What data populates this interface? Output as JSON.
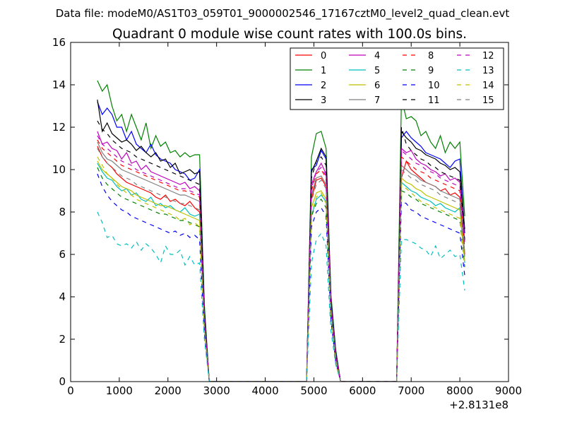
{
  "figure": {
    "suptitle": "Data file: modeM0/AS1T03_059T01_9000002546_17167cztM0_level2_quad_clean.evt"
  },
  "chart_data": {
    "type": "line",
    "title": "Quadrant 0 module wise count rates with 100.0s bins.",
    "xlabel": "",
    "ylabel": "",
    "x_offset_label": "+2.8131e8",
    "xlim": [
      0,
      9000
    ],
    "ylim": [
      0,
      16
    ],
    "xticks": [
      0,
      1000,
      2000,
      3000,
      4000,
      5000,
      6000,
      7000,
      8000,
      9000
    ],
    "yticks": [
      0,
      2,
      4,
      6,
      8,
      10,
      12,
      14,
      16
    ],
    "x": [
      550,
      650,
      750,
      850,
      950,
      1050,
      1150,
      1250,
      1350,
      1450,
      1550,
      1650,
      1750,
      1850,
      1950,
      2050,
      2150,
      2250,
      2350,
      2450,
      2550,
      2650,
      2750,
      2850,
      2950,
      3500,
      4000,
      4500,
      4850,
      4950,
      5050,
      5150,
      5250,
      5350,
      5450,
      5550,
      5650,
      6000,
      6500,
      6700,
      6800,
      6900,
      7000,
      7100,
      7200,
      7300,
      7400,
      7500,
      7600,
      7700,
      7800,
      7900,
      8000,
      8100
    ],
    "legend": {
      "location": "top-right",
      "columns": 4
    },
    "series": [
      {
        "name": "0",
        "color": "#ff0000",
        "dash": "solid",
        "values": [
          11.1,
          10.6,
          10.3,
          10.1,
          9.8,
          9.6,
          9.4,
          9.3,
          9.2,
          9.1,
          9.0,
          8.9,
          8.7,
          8.6,
          8.8,
          8.5,
          8.6,
          8.4,
          8.3,
          8.5,
          8.2,
          8.0,
          2.8,
          0,
          0,
          0,
          0,
          0,
          0,
          8.6,
          9.5,
          9.6,
          9.2,
          3.5,
          1.2,
          0,
          0,
          0,
          0,
          0,
          9.6,
          10.4,
          10.0,
          9.8,
          9.6,
          9.4,
          9.3,
          9.2,
          9.0,
          9.1,
          8.8,
          8.9,
          8.7,
          6.0
        ]
      },
      {
        "name": "1",
        "color": "#008000",
        "dash": "solid",
        "values": [
          14.2,
          13.7,
          14.0,
          13.0,
          12.3,
          12.6,
          11.8,
          12.6,
          12.0,
          11.4,
          12.2,
          11.0,
          11.6,
          11.1,
          11.3,
          10.8,
          10.9,
          10.6,
          10.8,
          10.6,
          10.7,
          10.7,
          3.6,
          0,
          0,
          0,
          0,
          0,
          0,
          10.6,
          11.7,
          11.8,
          11.0,
          4.1,
          1.5,
          0,
          0,
          0,
          0,
          0,
          13.4,
          12.4,
          12.5,
          12.3,
          11.6,
          11.8,
          11.3,
          11.0,
          11.6,
          10.8,
          11.3,
          11.0,
          11.3,
          7.8
        ]
      },
      {
        "name": "2",
        "color": "#0000ff",
        "dash": "solid",
        "values": [
          13.2,
          12.6,
          12.9,
          12.6,
          12.0,
          12.0,
          11.4,
          11.8,
          11.2,
          11.0,
          10.8,
          11.2,
          10.7,
          10.5,
          10.4,
          10.3,
          10.0,
          9.9,
          9.8,
          9.5,
          9.6,
          10.0,
          3.3,
          0,
          0,
          0,
          0,
          0,
          0,
          10.0,
          10.2,
          10.9,
          10.5,
          3.9,
          1.4,
          0,
          0,
          0,
          0,
          0,
          11.5,
          11.8,
          11.5,
          11.3,
          11.1,
          10.8,
          10.7,
          10.6,
          10.5,
          10.3,
          10.1,
          10.4,
          10.5,
          7.0
        ]
      },
      {
        "name": "3",
        "color": "#000000",
        "dash": "solid",
        "values": [
          13.3,
          11.8,
          12.2,
          11.7,
          11.5,
          11.3,
          11.4,
          11.2,
          10.9,
          11.1,
          10.8,
          10.6,
          10.8,
          10.4,
          10.5,
          10.1,
          10.3,
          9.8,
          9.9,
          10.0,
          9.8,
          9.9,
          3.3,
          0,
          0,
          0,
          0,
          0,
          0,
          9.9,
          10.4,
          11.0,
          10.6,
          3.8,
          1.3,
          0,
          0,
          0,
          0,
          0,
          11.8,
          11.5,
          11.3,
          11.0,
          10.9,
          10.7,
          10.6,
          10.5,
          10.3,
          10.2,
          10.0,
          10.1,
          9.9,
          7.2
        ]
      },
      {
        "name": "4",
        "color": "#bf00bf",
        "dash": "solid",
        "values": [
          11.8,
          11.2,
          11.3,
          11.0,
          10.9,
          10.5,
          10.8,
          10.3,
          10.4,
          10.0,
          10.2,
          9.9,
          9.8,
          9.7,
          9.6,
          9.5,
          9.4,
          9.3,
          9.4,
          9.1,
          9.2,
          9.0,
          3.0,
          0,
          0,
          0,
          0,
          0,
          0,
          9.3,
          9.9,
          10.3,
          9.8,
          3.6,
          1.2,
          0,
          0,
          0,
          0,
          0,
          11.0,
          10.8,
          10.9,
          10.5,
          10.3,
          10.2,
          10.0,
          9.9,
          9.7,
          9.8,
          9.5,
          9.6,
          9.4,
          6.6
        ]
      },
      {
        "name": "5",
        "color": "#00bfbf",
        "dash": "solid",
        "values": [
          10.3,
          9.9,
          9.6,
          9.5,
          9.2,
          9.0,
          9.1,
          8.8,
          8.9,
          8.6,
          8.5,
          8.7,
          8.3,
          8.4,
          8.2,
          8.3,
          8.1,
          8.0,
          8.2,
          7.9,
          7.8,
          7.9,
          2.6,
          0,
          0,
          0,
          0,
          0,
          0,
          7.8,
          8.6,
          8.8,
          8.5,
          3.2,
          1.0,
          0,
          0,
          0,
          0,
          0,
          9.4,
          9.2,
          9.0,
          8.9,
          8.7,
          8.6,
          8.5,
          8.3,
          8.4,
          8.2,
          8.1,
          8.0,
          8.2,
          5.6
        ]
      },
      {
        "name": "6",
        "color": "#bfbf00",
        "dash": "solid",
        "values": [
          10.4,
          10.0,
          9.8,
          9.6,
          9.4,
          9.2,
          9.1,
          9.0,
          8.8,
          8.7,
          8.6,
          8.5,
          8.4,
          8.3,
          8.3,
          8.2,
          8.1,
          8.0,
          7.9,
          7.8,
          7.7,
          7.6,
          2.6,
          0,
          0,
          0,
          0,
          0,
          0,
          8.2,
          8.9,
          9.0,
          8.6,
          3.3,
          1.1,
          0,
          0,
          0,
          0,
          0,
          9.6,
          9.4,
          9.3,
          9.1,
          9.0,
          8.8,
          8.7,
          8.6,
          8.5,
          8.4,
          8.3,
          8.2,
          8.1,
          5.7
        ]
      },
      {
        "name": "7",
        "color": "#808080",
        "dash": "solid",
        "values": [
          11.3,
          10.8,
          10.5,
          10.4,
          10.2,
          10.0,
          9.9,
          9.8,
          9.7,
          9.6,
          9.5,
          9.4,
          9.3,
          9.2,
          9.1,
          9.0,
          8.9,
          8.8,
          8.8,
          8.7,
          8.6,
          8.5,
          2.9,
          0,
          0,
          0,
          0,
          0,
          0,
          8.8,
          9.6,
          9.7,
          9.3,
          3.5,
          1.2,
          0,
          0,
          0,
          0,
          0,
          10.2,
          10.0,
          9.8,
          9.7,
          9.5,
          9.4,
          9.3,
          9.2,
          9.0,
          8.9,
          8.8,
          8.7,
          8.6,
          6.1
        ]
      },
      {
        "name": "8",
        "color": "#ff0000",
        "dash": "dashed",
        "values": [
          11.4,
          11.0,
          10.8,
          10.6,
          10.4,
          10.2,
          10.1,
          10.0,
          9.9,
          9.8,
          9.7,
          9.6,
          9.5,
          9.4,
          9.3,
          9.2,
          9.1,
          9.0,
          9.0,
          8.9,
          8.8,
          8.7,
          3.0,
          0,
          0,
          0,
          0,
          0,
          0,
          9.0,
          9.8,
          10.0,
          9.6,
          3.6,
          1.2,
          0,
          0,
          0,
          0,
          0,
          10.6,
          10.4,
          10.2,
          10.0,
          9.9,
          9.8,
          9.6,
          9.5,
          9.4,
          9.3,
          9.2,
          9.1,
          9.0,
          6.3
        ]
      },
      {
        "name": "9",
        "color": "#008000",
        "dash": "dashed",
        "values": [
          10.1,
          9.6,
          9.3,
          9.1,
          8.9,
          8.7,
          8.6,
          8.5,
          8.4,
          8.3,
          8.2,
          8.1,
          8.0,
          7.9,
          7.9,
          7.8,
          7.7,
          7.6,
          7.6,
          7.5,
          7.4,
          7.3,
          2.5,
          0,
          0,
          0,
          0,
          0,
          0,
          7.8,
          8.4,
          8.6,
          8.2,
          3.1,
          1.0,
          0,
          0,
          0,
          0,
          0,
          9.0,
          8.9,
          8.7,
          8.6,
          8.4,
          8.3,
          8.2,
          8.1,
          8.0,
          7.9,
          7.8,
          7.7,
          7.6,
          5.4
        ]
      },
      {
        "name": "10",
        "color": "#0000ff",
        "dash": "dashed",
        "values": [
          9.8,
          9.2,
          8.8,
          8.5,
          8.3,
          8.1,
          8.0,
          7.8,
          7.7,
          7.6,
          7.5,
          7.4,
          7.3,
          7.2,
          7.1,
          7.0,
          7.1,
          6.9,
          7.0,
          6.8,
          6.9,
          6.7,
          2.3,
          0,
          0,
          0,
          0,
          0,
          0,
          7.3,
          8.0,
          8.2,
          7.8,
          2.9,
          0.9,
          0,
          0,
          0,
          0,
          0,
          8.5,
          8.4,
          8.1,
          8.0,
          7.8,
          7.7,
          7.6,
          7.5,
          7.4,
          7.3,
          7.2,
          7.1,
          7.0,
          5.0
        ]
      },
      {
        "name": "11",
        "color": "#000000",
        "dash": "dashed",
        "values": [
          12.3,
          11.9,
          11.7,
          11.4,
          11.2,
          11.0,
          10.9,
          10.8,
          10.6,
          10.5,
          10.4,
          10.3,
          10.2,
          10.1,
          10.0,
          9.9,
          9.8,
          9.7,
          9.6,
          9.5,
          9.4,
          9.3,
          3.1,
          0,
          0,
          0,
          0,
          0,
          0,
          9.6,
          10.4,
          10.6,
          10.2,
          3.8,
          1.3,
          0,
          0,
          0,
          0,
          0,
          12.0,
          11.2,
          10.9,
          10.7,
          10.5,
          10.4,
          10.2,
          10.1,
          9.9,
          9.8,
          9.7,
          9.6,
          9.5,
          6.7
        ]
      },
      {
        "name": "12",
        "color": "#bf00bf",
        "dash": "dashed",
        "values": [
          11.6,
          11.2,
          11.0,
          10.8,
          10.6,
          10.4,
          10.3,
          10.2,
          10.0,
          9.9,
          9.8,
          9.7,
          9.6,
          9.5,
          9.4,
          9.3,
          9.2,
          9.1,
          9.1,
          9.0,
          8.9,
          8.8,
          3.0,
          0,
          0,
          0,
          0,
          0,
          0,
          9.1,
          9.9,
          10.1,
          9.7,
          3.6,
          1.2,
          0,
          0,
          0,
          0,
          0,
          10.9,
          10.7,
          10.5,
          10.3,
          10.2,
          10.0,
          9.9,
          9.8,
          9.6,
          9.5,
          9.4,
          9.3,
          9.2,
          6.5
        ]
      },
      {
        "name": "13",
        "color": "#00bfbf",
        "dash": "dashed",
        "values": [
          8.0,
          7.5,
          6.8,
          6.9,
          6.5,
          6.4,
          6.5,
          6.3,
          6.6,
          6.2,
          6.5,
          6.3,
          6.0,
          5.6,
          6.4,
          6.0,
          6.0,
          6.2,
          5.5,
          5.9,
          5.5,
          5.6,
          2.0,
          0,
          0,
          0,
          0,
          0,
          0,
          5.6,
          6.7,
          7.0,
          6.4,
          2.4,
          0.8,
          0,
          0,
          0,
          0,
          0,
          6.7,
          6.7,
          6.6,
          6.5,
          6.3,
          6.2,
          5.9,
          6.4,
          5.8,
          6.0,
          6.2,
          5.9,
          6.0,
          4.3
        ]
      },
      {
        "name": "14",
        "color": "#bfbf00",
        "dash": "dashed",
        "values": [
          10.6,
          10.2,
          9.8,
          9.6,
          9.3,
          9.1,
          8.9,
          8.8,
          8.6,
          8.5,
          8.4,
          8.3,
          8.2,
          8.1,
          8.0,
          7.9,
          7.8,
          7.6,
          7.7,
          7.4,
          7.5,
          7.3,
          2.5,
          0,
          0,
          0,
          0,
          0,
          0,
          7.9,
          8.7,
          8.9,
          8.4,
          3.2,
          1.0,
          0,
          0,
          0,
          0,
          0,
          9.3,
          9.1,
          8.9,
          8.7,
          8.5,
          8.4,
          8.3,
          8.2,
          8.1,
          8.0,
          7.9,
          7.8,
          7.7,
          5.5
        ]
      },
      {
        "name": "15",
        "color": "#808080",
        "dash": "dashed",
        "values": [
          11.0,
          10.6,
          10.3,
          10.1,
          9.9,
          9.7,
          9.6,
          9.5,
          9.3,
          9.2,
          9.1,
          9.0,
          8.9,
          8.8,
          8.7,
          8.6,
          8.5,
          8.4,
          8.4,
          8.3,
          8.2,
          8.1,
          2.8,
          0,
          0,
          0,
          0,
          0,
          0,
          8.5,
          9.3,
          9.5,
          9.1,
          3.4,
          1.1,
          0,
          0,
          0,
          0,
          0,
          10.0,
          9.8,
          9.6,
          9.5,
          9.3,
          9.2,
          9.1,
          9.0,
          8.8,
          8.7,
          8.6,
          8.5,
          8.4,
          5.9
        ]
      }
    ]
  }
}
